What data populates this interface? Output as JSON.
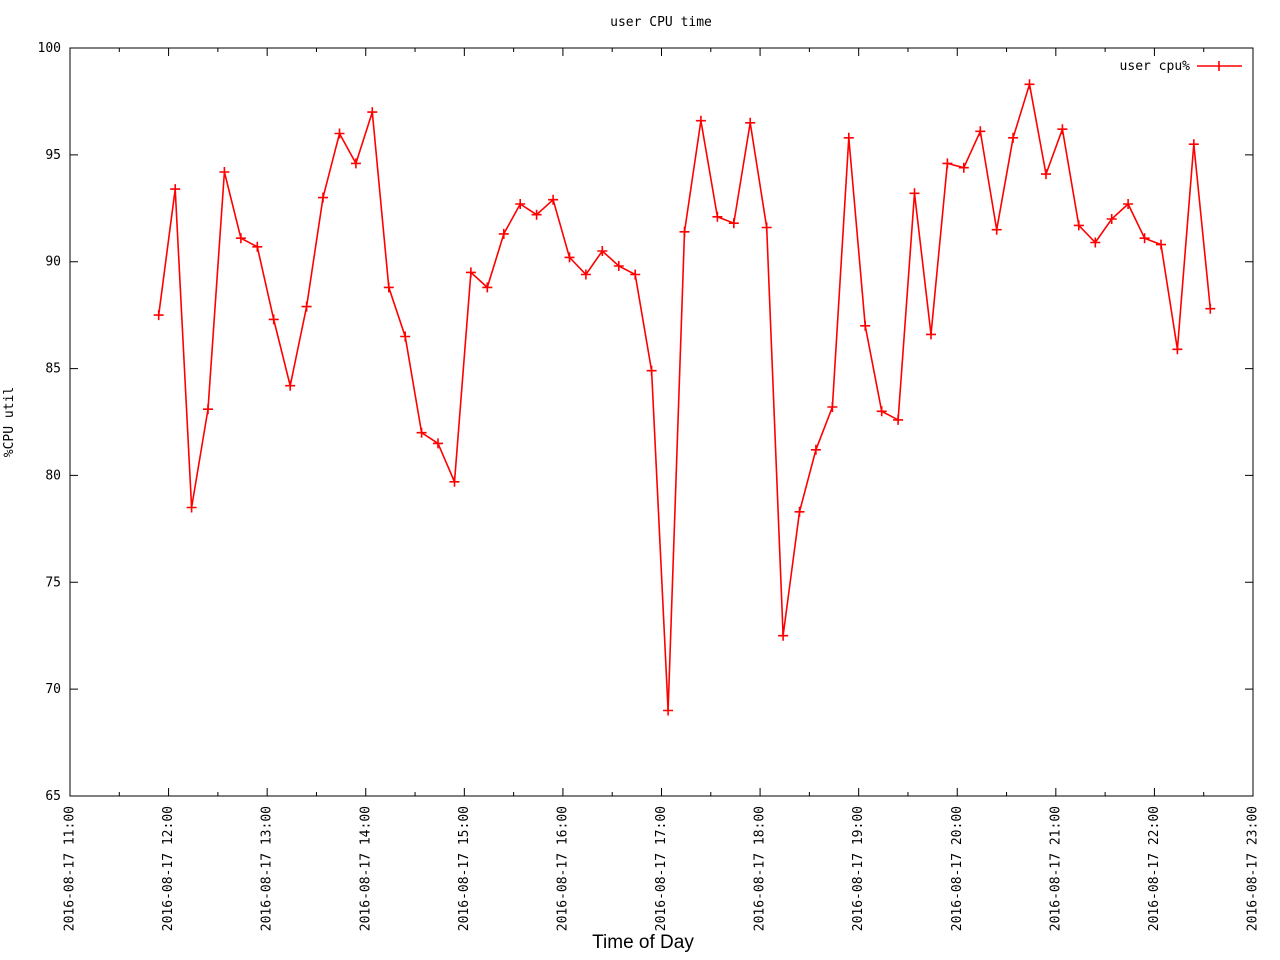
{
  "chart": {
    "title": "user CPU time",
    "xlabel": "Time of Day",
    "ylabel": "%CPU util",
    "legend_label": "user cpu%",
    "series_color": "#ff0000",
    "axis_color": "#000000",
    "background_color": "#ffffff"
  },
  "chart_data": {
    "type": "line",
    "title": "user CPU time",
    "xlabel": "Time of Day",
    "ylabel": "%CPU util",
    "date": "2016-08-17",
    "xlim": [
      "2016-08-17 11:00",
      "2016-08-17 23:00"
    ],
    "ylim": [
      65,
      100
    ],
    "y_ticks": [
      65,
      70,
      75,
      80,
      85,
      90,
      95,
      100
    ],
    "x_tick_labels": [
      "2016-08-17 11:00",
      "2016-08-17 12:00",
      "2016-08-17 13:00",
      "2016-08-17 14:00",
      "2016-08-17 15:00",
      "2016-08-17 16:00",
      "2016-08-17 17:00",
      "2016-08-17 18:00",
      "2016-08-17 19:00",
      "2016-08-17 20:00",
      "2016-08-17 21:00",
      "2016-08-17 22:00",
      "2016-08-17 23:00"
    ],
    "x_minor_tick_minutes": 30,
    "grid": false,
    "legend_position": "top-right",
    "series": [
      {
        "name": "user cpu%",
        "color": "#ff0000",
        "marker": "plus",
        "points": [
          [
            "11:54",
            87.5
          ],
          [
            "12:04",
            93.4
          ],
          [
            "12:14",
            78.5
          ],
          [
            "12:24",
            83.1
          ],
          [
            "12:34",
            94.2
          ],
          [
            "12:44",
            91.1
          ],
          [
            "12:54",
            90.7
          ],
          [
            "13:04",
            87.3
          ],
          [
            "13:14",
            84.2
          ],
          [
            "13:24",
            87.9
          ],
          [
            "13:34",
            93.0
          ],
          [
            "13:44",
            96.0
          ],
          [
            "13:54",
            94.6
          ],
          [
            "14:04",
            97.0
          ],
          [
            "14:14",
            88.8
          ],
          [
            "14:24",
            86.5
          ],
          [
            "14:34",
            82.0
          ],
          [
            "14:44",
            81.5
          ],
          [
            "14:54",
            79.7
          ],
          [
            "15:04",
            89.5
          ],
          [
            "15:14",
            88.8
          ],
          [
            "15:24",
            91.3
          ],
          [
            "15:34",
            92.7
          ],
          [
            "15:44",
            92.2
          ],
          [
            "15:54",
            92.9
          ],
          [
            "16:04",
            90.2
          ],
          [
            "16:14",
            89.4
          ],
          [
            "16:24",
            90.5
          ],
          [
            "16:34",
            89.8
          ],
          [
            "16:44",
            89.4
          ],
          [
            "16:54",
            84.9
          ],
          [
            "17:04",
            69.0
          ],
          [
            "17:14",
            91.4
          ],
          [
            "17:24",
            96.6
          ],
          [
            "17:34",
            92.1
          ],
          [
            "17:44",
            91.8
          ],
          [
            "17:54",
            96.5
          ],
          [
            "18:04",
            91.6
          ],
          [
            "18:14",
            72.5
          ],
          [
            "18:24",
            78.3
          ],
          [
            "18:34",
            81.2
          ],
          [
            "18:44",
            83.2
          ],
          [
            "18:54",
            95.8
          ],
          [
            "19:04",
            87.0
          ],
          [
            "19:14",
            83.0
          ],
          [
            "19:24",
            82.6
          ],
          [
            "19:34",
            93.2
          ],
          [
            "19:44",
            86.6
          ],
          [
            "19:54",
            94.6
          ],
          [
            "20:04",
            94.4
          ],
          [
            "20:14",
            96.1
          ],
          [
            "20:24",
            91.5
          ],
          [
            "20:34",
            95.8
          ],
          [
            "20:44",
            98.3
          ],
          [
            "20:54",
            94.1
          ],
          [
            "21:04",
            96.2
          ],
          [
            "21:14",
            91.7
          ],
          [
            "21:24",
            90.9
          ],
          [
            "21:34",
            92.0
          ],
          [
            "21:44",
            92.7
          ],
          [
            "21:54",
            91.1
          ],
          [
            "22:04",
            90.8
          ],
          [
            "22:14",
            85.9
          ],
          [
            "22:24",
            95.5
          ],
          [
            "22:34",
            87.8
          ]
        ]
      }
    ]
  }
}
